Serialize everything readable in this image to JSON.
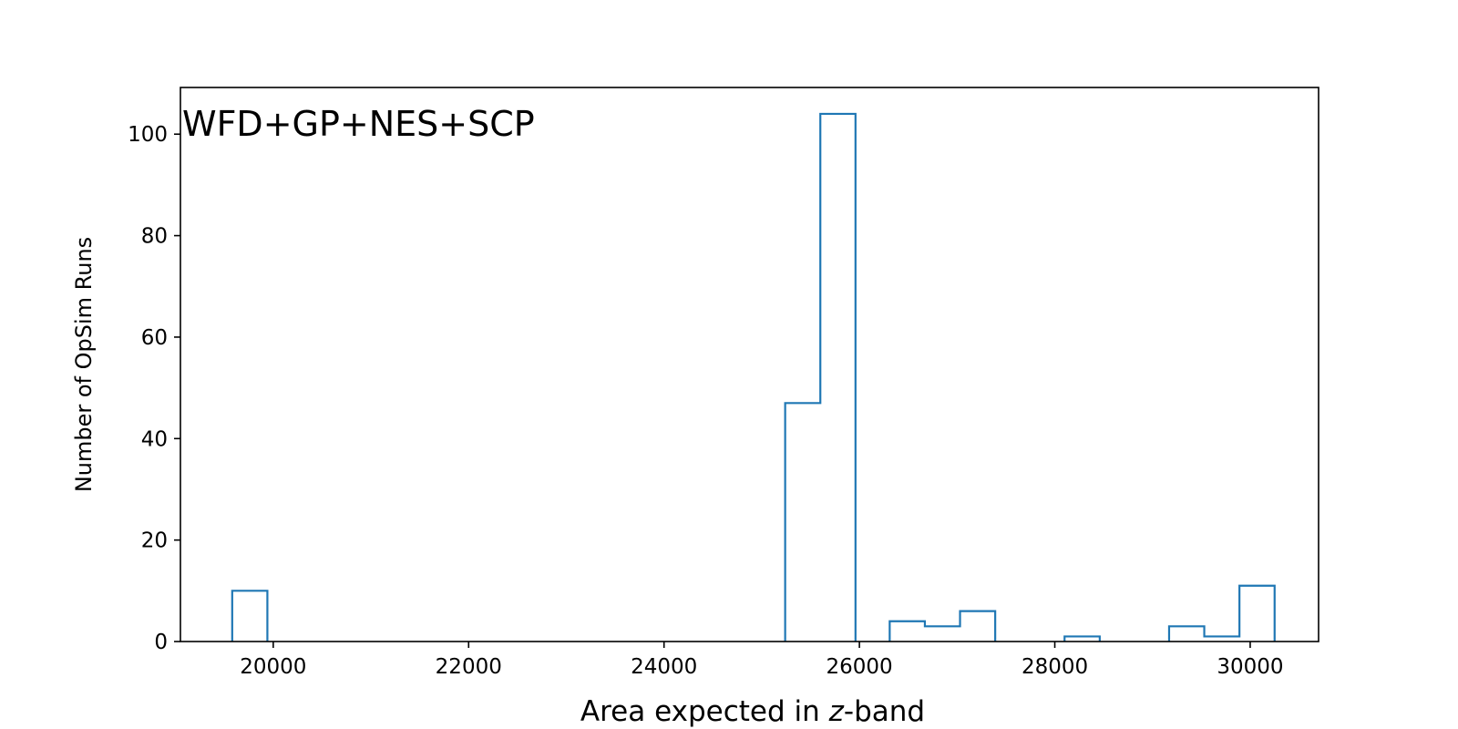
{
  "chart_data": {
    "type": "bar",
    "histtype": "step",
    "annotation": "WFD+GP+NES+SCP",
    "xlabel": {
      "before": "Area expected in ",
      "italic": "z",
      "after": "-band"
    },
    "ylabel": "Number of OpSim Runs",
    "xlim": [
      19050,
      30700
    ],
    "ylim": [
      0,
      109.2
    ],
    "xticks": [
      20000,
      22000,
      24000,
      26000,
      28000,
      30000
    ],
    "yticks": [
      0,
      20,
      40,
      60,
      80,
      100
    ],
    "color": "#1f77b4",
    "bins": [
      {
        "x0": 19580,
        "x1": 19940,
        "count": 10
      },
      {
        "x0": 25240,
        "x1": 25600,
        "count": 47
      },
      {
        "x0": 25600,
        "x1": 25960,
        "count": 104
      },
      {
        "x0": 26310,
        "x1": 26670,
        "count": 4
      },
      {
        "x0": 26670,
        "x1": 27030,
        "count": 3
      },
      {
        "x0": 27030,
        "x1": 27390,
        "count": 6
      },
      {
        "x0": 28100,
        "x1": 28460,
        "count": 1
      },
      {
        "x0": 29170,
        "x1": 29530,
        "count": 3
      },
      {
        "x0": 29530,
        "x1": 29890,
        "count": 1
      },
      {
        "x0": 29890,
        "x1": 30250,
        "count": 11
      }
    ]
  }
}
